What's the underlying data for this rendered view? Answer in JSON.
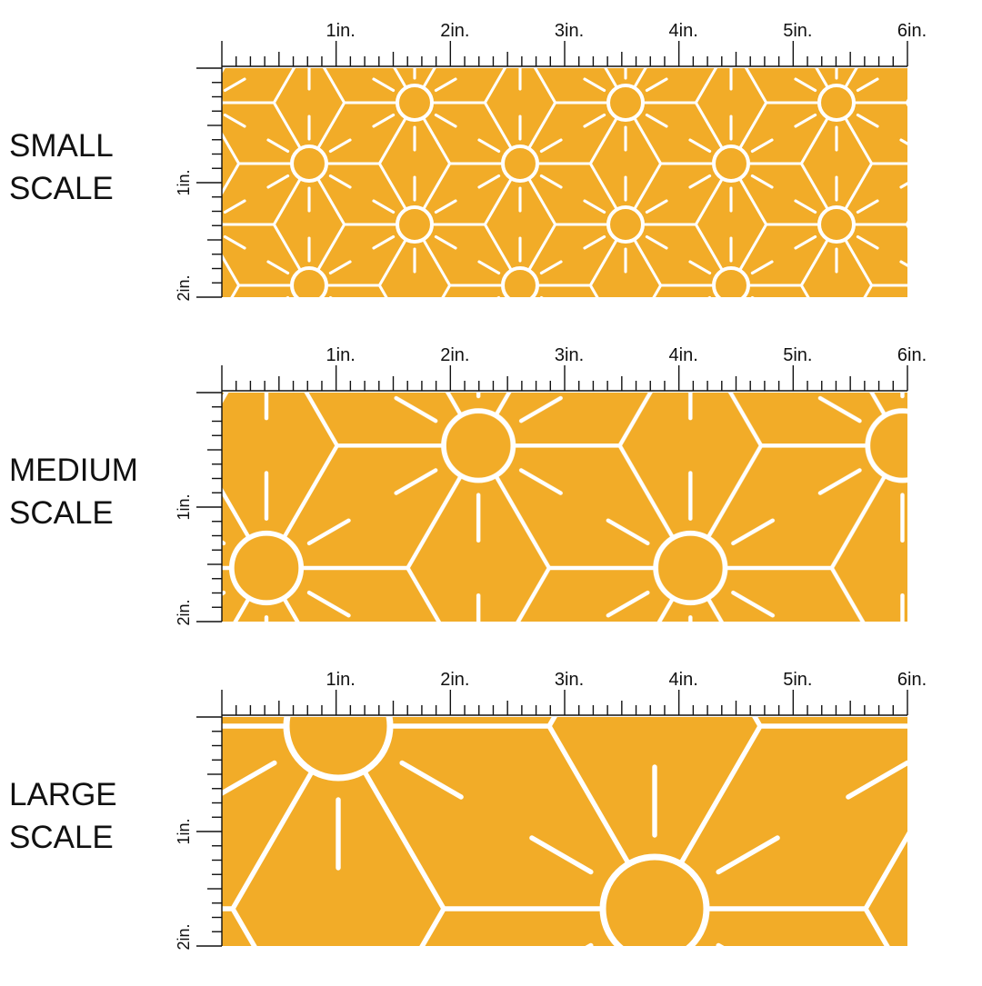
{
  "panels": [
    {
      "label_lines": [
        "SMALL",
        "SCALE"
      ],
      "ruler_x": [
        "1in.",
        "2in.",
        "3in.",
        "4in.",
        "5in.",
        "6in."
      ],
      "ruler_y": [
        "1in.",
        "2in."
      ]
    },
    {
      "label_lines": [
        "MEDIUM",
        "SCALE"
      ],
      "ruler_x": [
        "1in.",
        "2in.",
        "3in.",
        "4in.",
        "5in.",
        "6in."
      ],
      "ruler_y": [
        "1in.",
        "2in."
      ]
    },
    {
      "label_lines": [
        "LARGE",
        "SCALE"
      ],
      "ruler_x": [
        "1in.",
        "2in.",
        "3in.",
        "4in.",
        "5in.",
        "6in."
      ],
      "ruler_y": [
        "1in.",
        "2in."
      ]
    }
  ]
}
